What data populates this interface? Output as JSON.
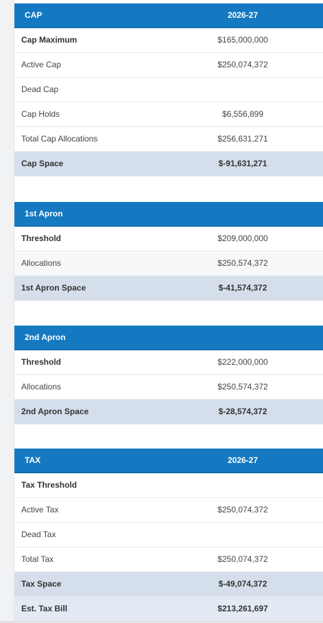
{
  "tables": [
    {
      "header": [
        "CAP",
        "2026-27"
      ],
      "rows": [
        [
          "Cap Maximum",
          "$165,000,000"
        ],
        [
          "Active Cap",
          "$250,074,372"
        ],
        [
          "Dead Cap"
        ],
        [
          "Cap Holds",
          "$6,556,899"
        ],
        [
          "Total Cap Allocations",
          "$256,631,271"
        ],
        [
          "Cap Space",
          "$-91,631,271"
        ]
      ]
    },
    {
      "header": [
        "1st Apron"
      ],
      "rows": [
        [
          "Threshold",
          "$209,000,000"
        ],
        [
          "Allocations",
          "$250,574,372"
        ],
        [
          "1st Apron Space",
          "$-41,574,372"
        ]
      ]
    },
    {
      "header": [
        "2nd Apron"
      ],
      "rows": [
        [
          "Threshold",
          "$222,000,000"
        ],
        [
          "Allocations",
          "$250,574,372"
        ],
        [
          "2nd Apron Space",
          "$-28,574,372"
        ]
      ]
    },
    {
      "header": [
        "TAX",
        "2026-27"
      ],
      "rows": [
        [
          "Tax Threshold"
        ],
        [
          "Active Tax",
          "$250,074,372"
        ],
        [
          "Dead Tax"
        ],
        [
          "Total Tax",
          "$250,074,372"
        ],
        [
          "Tax Space",
          "$-49,074,372"
        ],
        [
          "Est. Tax Bill",
          "$213,261,697"
        ]
      ]
    }
  ]
}
